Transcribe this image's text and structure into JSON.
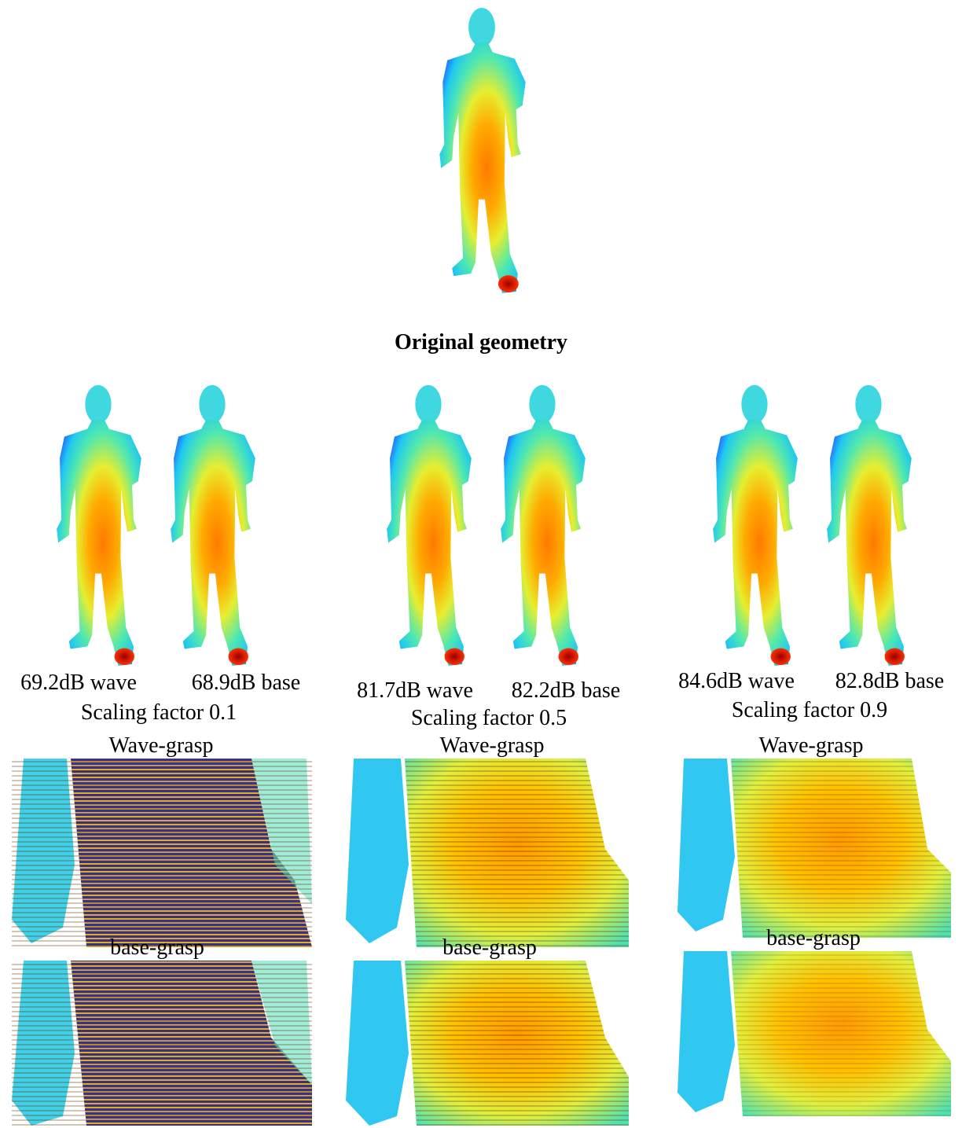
{
  "main": {
    "caption": "Original geometry"
  },
  "columns": [
    {
      "wave_label": "69.2dB wave",
      "base_label": "68.9dB base",
      "caption": "Scaling factor 0.1",
      "wave_crop_title": "Wave-grasp",
      "base_crop_title": "base-grasp"
    },
    {
      "wave_label": "81.7dB wave",
      "base_label": "82.2dB base",
      "caption": "Scaling factor 0.5",
      "wave_crop_title": "Wave-grasp",
      "base_crop_title": "base-grasp"
    },
    {
      "wave_label": "84.6dB wave",
      "base_label": "82.8dB base",
      "caption": "Scaling factor 0.9",
      "wave_crop_title": "Wave-grasp",
      "base_crop_title": "base-grasp"
    }
  ]
}
